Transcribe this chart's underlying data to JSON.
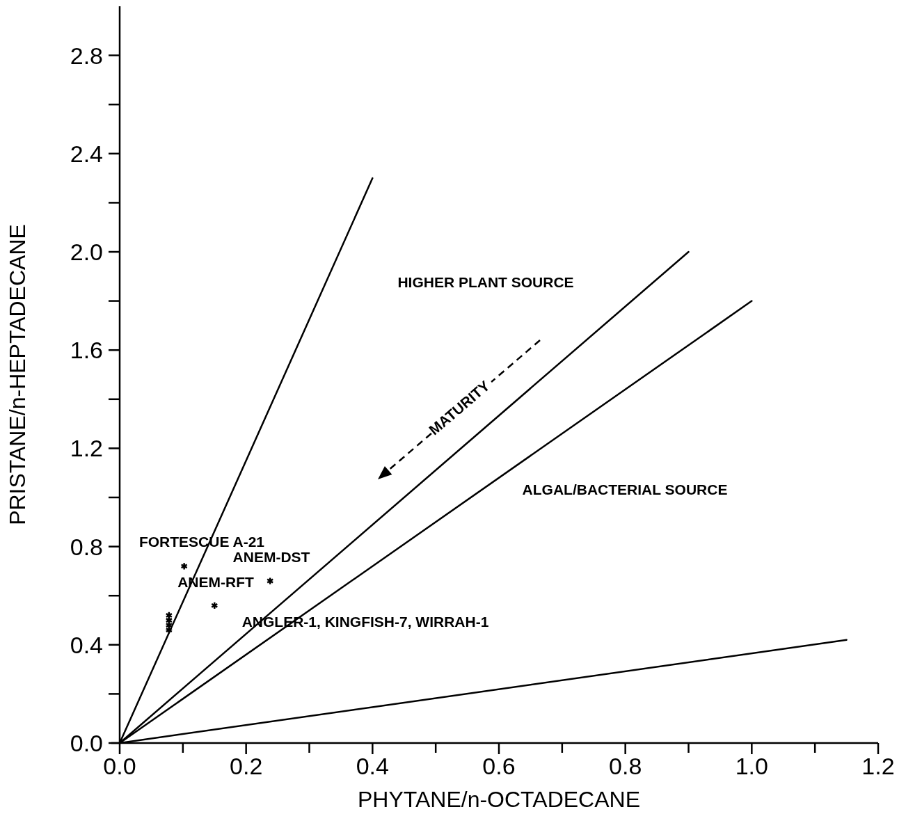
{
  "chart_data": {
    "type": "scatter",
    "xlabel": "PHYTANE/n-OCTADECANE",
    "ylabel": "PRISTANE/n-HEPTADECANE",
    "xlim": [
      0,
      1.2
    ],
    "ylim": [
      0,
      3.0
    ],
    "xticks": [
      {
        "value": 0,
        "label": "0.0"
      },
      {
        "value": 0.1,
        "label": null
      },
      {
        "value": 0.2,
        "label": "0.2"
      },
      {
        "value": 0.3,
        "label": null
      },
      {
        "value": 0.4,
        "label": "0.4"
      },
      {
        "value": 0.5,
        "label": null
      },
      {
        "value": 0.6,
        "label": "0.6"
      },
      {
        "value": 0.7,
        "label": null
      },
      {
        "value": 0.8,
        "label": "0.8"
      },
      {
        "value": 0.9,
        "label": null
      },
      {
        "value": 1.0,
        "label": "1.0"
      },
      {
        "value": 1.1,
        "label": null
      },
      {
        "value": 1.2,
        "label": "1.2"
      }
    ],
    "yticks": [
      {
        "value": 0,
        "label": "0.0"
      },
      {
        "value": 0.2,
        "label": null
      },
      {
        "value": 0.4,
        "label": "0.4"
      },
      {
        "value": 0.6,
        "label": null
      },
      {
        "value": 0.8,
        "label": "0.8"
      },
      {
        "value": 1.0,
        "label": null
      },
      {
        "value": 1.2,
        "label": "1.2"
      },
      {
        "value": 1.4,
        "label": null
      },
      {
        "value": 1.6,
        "label": "1.6"
      },
      {
        "value": 1.8,
        "label": null
      },
      {
        "value": 2.0,
        "label": "2.0"
      },
      {
        "value": 2.2,
        "label": null
      },
      {
        "value": 2.4,
        "label": "2.4"
      },
      {
        "value": 2.6,
        "label": null
      },
      {
        "value": 2.8,
        "label": "2.8"
      }
    ],
    "grid": false,
    "series": [
      {
        "marker": "cross",
        "color": "#000000",
        "x": [
          0.102,
          0.238,
          0.15,
          0.078,
          0.078,
          0.078,
          0.078
        ],
        "values": [
          0.72,
          0.66,
          0.56,
          0.52,
          0.5,
          0.48,
          0.46
        ]
      },
      {
        "type": "line",
        "color": "#000000",
        "x": [
          0,
          0.4
        ],
        "values": [
          0,
          2.3
        ]
      },
      {
        "type": "line",
        "color": "#000000",
        "x": [
          0,
          0.9
        ],
        "values": [
          0,
          2.0
        ]
      },
      {
        "type": "line",
        "color": "#000000",
        "x": [
          0,
          1.0
        ],
        "values": [
          0,
          1.8
        ]
      },
      {
        "type": "line",
        "color": "#000000",
        "x": [
          0,
          1.15
        ],
        "values": [
          0,
          0.42
        ]
      }
    ],
    "annotations": [
      "HIGHER PLANT SOURCE",
      "ALGAL/BACTERIAL SOURCE",
      "MATURITY",
      "FORTESCUE A-21",
      "ANEM-DST",
      "ANEM-RFT",
      "ANGLER-1, KINGFISH-7, WIRRAH-1"
    ]
  }
}
